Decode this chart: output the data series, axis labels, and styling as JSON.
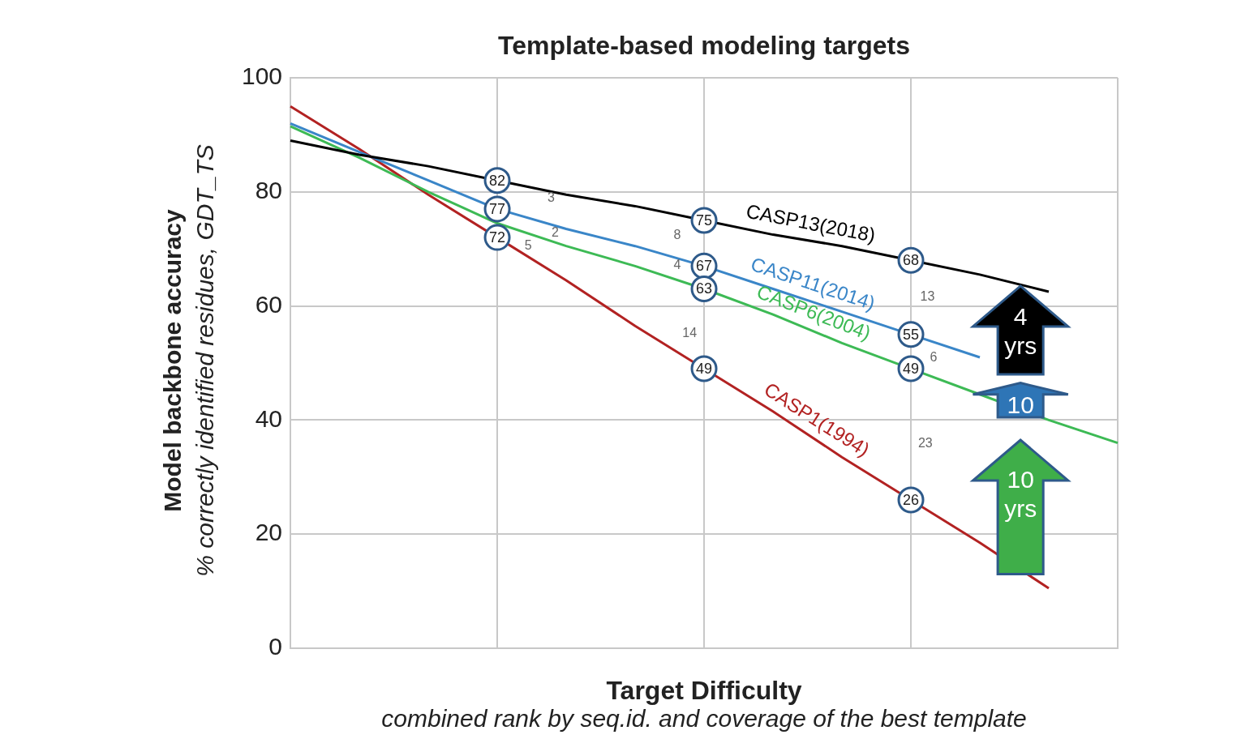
{
  "chart_data": {
    "type": "line",
    "title": "Template-based modeling targets",
    "xlabel": "Target Difficulty",
    "ylabel": "Model backbone accuracy",
    "categories": [
      null,
      null,
      null,
      null,
      null,
      null,
      null,
      null,
      null,
      null,
      null,
      null,
      null
    ],
    "ylim": [
      0,
      100
    ],
    "yticks": [
      0,
      20,
      40,
      60,
      80,
      100
    ],
    "grid": true,
    "legend": false,
    "tick_labels": "y",
    "marker": "none",
    "line_style": "solid",
    "series": [
      {
        "name": "CASP13(2018)",
        "color": "#000000",
        "values": [
          89,
          86.5,
          84.5,
          82,
          79.5,
          77.5,
          75,
          72.5,
          70.5,
          68,
          65.5,
          62.5,
          null
        ],
        "value_labels": [
          null,
          null,
          null,
          "82",
          null,
          null,
          "75",
          null,
          null,
          "68",
          null,
          null,
          null
        ]
      },
      {
        "name": "CASP11(2014)",
        "color": "#3a86c8",
        "values": [
          92,
          87,
          82,
          77,
          73.5,
          70.5,
          67,
          63,
          59,
          55,
          51,
          null,
          null
        ],
        "value_labels": [
          null,
          null,
          null,
          "77",
          null,
          null,
          "67",
          null,
          null,
          "55",
          null,
          null,
          null
        ]
      },
      {
        "name": "CASP6(2004)",
        "color": "#3dba55",
        "values": [
          91.5,
          86,
          80,
          74.5,
          70.5,
          67,
          63,
          58.5,
          53.5,
          49,
          44.5,
          40,
          36
        ],
        "value_labels": [
          null,
          null,
          null,
          null,
          null,
          null,
          "63",
          null,
          null,
          "49",
          null,
          null,
          null
        ]
      },
      {
        "name": "CASP1(1994)",
        "color": "#b22222",
        "values": [
          95,
          87.5,
          79.5,
          72,
          64.5,
          56.5,
          49,
          41.5,
          33.5,
          26,
          18.5,
          10.5,
          null
        ],
        "value_labels": [
          null,
          null,
          null,
          "72",
          null,
          null,
          "49",
          null,
          null,
          "26",
          null,
          null,
          null
        ]
      }
    ],
    "annotations": [
      "% correctly identified residues, GDT_TS",
      "combined rank by seq.id. and coverage of the best template",
      "3",
      "2",
      "5",
      "8",
      "4",
      "14",
      "13",
      "6",
      "23",
      "4 yrs",
      "10",
      "10 yrs"
    ]
  }
}
